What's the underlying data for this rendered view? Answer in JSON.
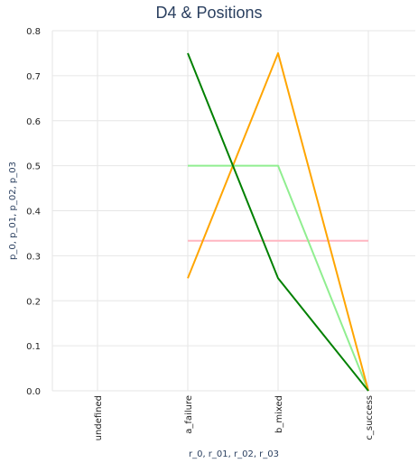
{
  "chart_data": {
    "type": "line",
    "title": "D4 & Positions",
    "xlabel": "r_0, r_01, r_02, r_03",
    "ylabel": "p_0, p_01, p_02, p_03",
    "categories": [
      "undefined",
      "a_failure",
      "b_mixed",
      "c_success"
    ],
    "ylim": [
      0,
      0.8
    ],
    "yticks": [
      "0.0",
      "0.1",
      "0.2",
      "0.3",
      "0.4",
      "0.5",
      "0.6",
      "0.7",
      "0.8"
    ],
    "grid": true,
    "legend": "none",
    "series": [
      {
        "color": "#ffb6c1",
        "values": [
          null,
          0.3333,
          0.3333,
          0.3333
        ]
      },
      {
        "color": "#90ee90",
        "values": [
          null,
          0.5,
          0.5,
          0.0
        ]
      },
      {
        "color": "#ffa500",
        "values": [
          null,
          0.25,
          0.75,
          0.0
        ]
      },
      {
        "color": "#008000",
        "values": [
          null,
          0.75,
          0.25,
          0.0
        ]
      }
    ]
  }
}
